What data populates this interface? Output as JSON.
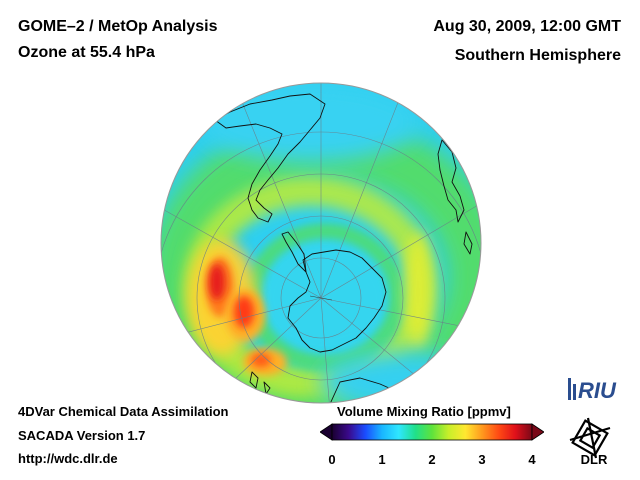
{
  "header": {
    "instrument": "GOME–2 / MetOp Analysis",
    "quantity": "Ozone at 55.4 hPa",
    "datetime": "Aug 30, 2009, 12:00 GMT",
    "region": "Southern Hemisphere"
  },
  "footer": {
    "method": "4DVar Chemical Data Assimilation",
    "version": "SACADA Version 1.7",
    "url": "http://wdc.dlr.de"
  },
  "colorbar": {
    "title": "Volume Mixing Ratio [ppmv]",
    "ticks": [
      "0",
      "1",
      "2",
      "3",
      "4"
    ],
    "min": 0,
    "max": 4,
    "colors": [
      "#1a0030",
      "#3a0a8c",
      "#1a4cff",
      "#19b6ff",
      "#2fe6ff",
      "#20e08a",
      "#5ee33c",
      "#c8ef2a",
      "#ffe830",
      "#ff9a1e",
      "#ff4a14",
      "#e0101a",
      "#7a0818"
    ]
  },
  "logos": {
    "riu": "RIU",
    "dlr": "DLR"
  },
  "map": {
    "projection": "orthographic",
    "pole": "south",
    "field": "ozone"
  }
}
